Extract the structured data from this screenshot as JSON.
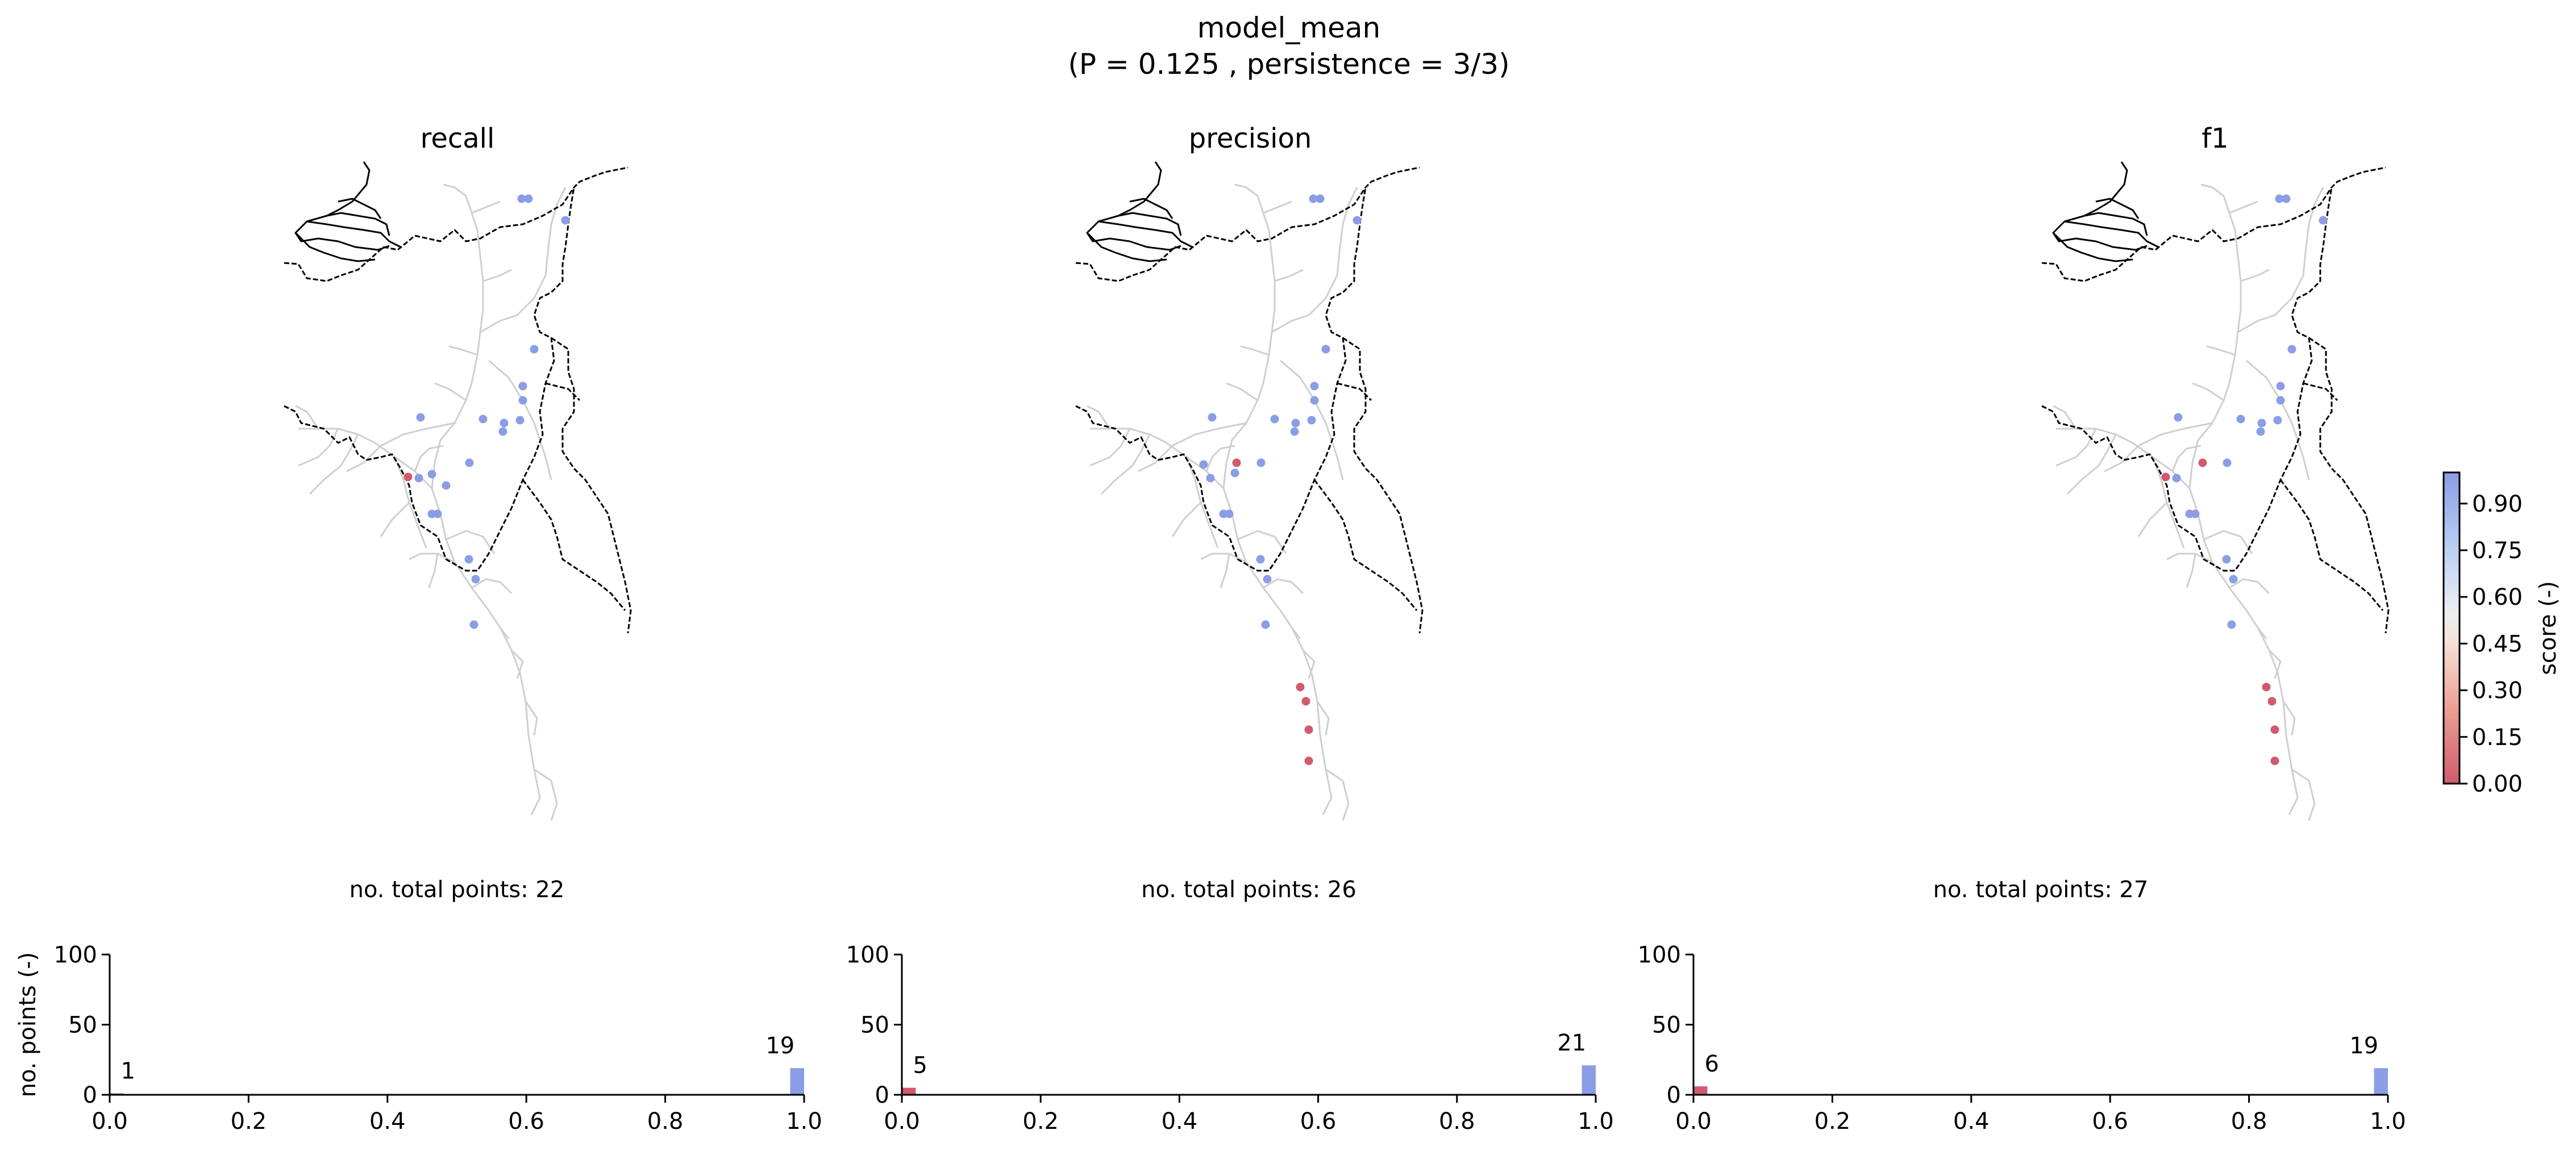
{
  "title": {
    "line1": "model_mean",
    "line2": "(P = 0.125 , persistence = 3/3)"
  },
  "maps": [
    {
      "title": "recall"
    },
    {
      "title": "precision"
    },
    {
      "title": "f1"
    }
  ],
  "colorbar": {
    "label": "score (-)",
    "ticks": [
      "0.00",
      "0.15",
      "0.30",
      "0.45",
      "0.60",
      "0.75",
      "0.90"
    ],
    "colors": {
      "low": "#d05a6e",
      "mid": "#f4f1ee",
      "high": "#8a9de6"
    }
  },
  "chart_data": [
    {
      "type": "bar",
      "title": "no. total points: 22",
      "ylabel": "no. points (-)",
      "xlim": [
        0,
        1
      ],
      "ylim": [
        0,
        100
      ],
      "xticks": [
        "0.0",
        "0.2",
        "0.4",
        "0.6",
        "0.8",
        "1.0"
      ],
      "yticks": [
        "0",
        "50",
        "100"
      ],
      "bars": [
        {
          "x": 0.0,
          "value": 1,
          "label": "1",
          "color": "#d05a6e"
        },
        {
          "x": 1.0,
          "value": 19,
          "label": "19",
          "color": "#8a9de6"
        }
      ]
    },
    {
      "type": "bar",
      "title": "no. total points: 26",
      "ylabel": "",
      "xlim": [
        0,
        1
      ],
      "ylim": [
        0,
        100
      ],
      "xticks": [
        "0.0",
        "0.2",
        "0.4",
        "0.6",
        "0.8",
        "1.0"
      ],
      "yticks": [
        "0",
        "50",
        "100"
      ],
      "bars": [
        {
          "x": 0.0,
          "value": 5,
          "label": "5",
          "color": "#d05a6e"
        },
        {
          "x": 1.0,
          "value": 21,
          "label": "21",
          "color": "#8a9de6"
        }
      ]
    },
    {
      "type": "bar",
      "title": "no. total points: 27",
      "ylabel": "",
      "xlim": [
        0,
        1
      ],
      "ylim": [
        0,
        100
      ],
      "xticks": [
        "0.0",
        "0.2",
        "0.4",
        "0.6",
        "0.8",
        "1.0"
      ],
      "yticks": [
        "0",
        "50",
        "100"
      ],
      "bars": [
        {
          "x": 0.0,
          "value": 6,
          "label": "6",
          "color": "#d05a6e"
        },
        {
          "x": 1.0,
          "value": 19,
          "label": "19",
          "color": "#8a9de6"
        }
      ]
    }
  ]
}
